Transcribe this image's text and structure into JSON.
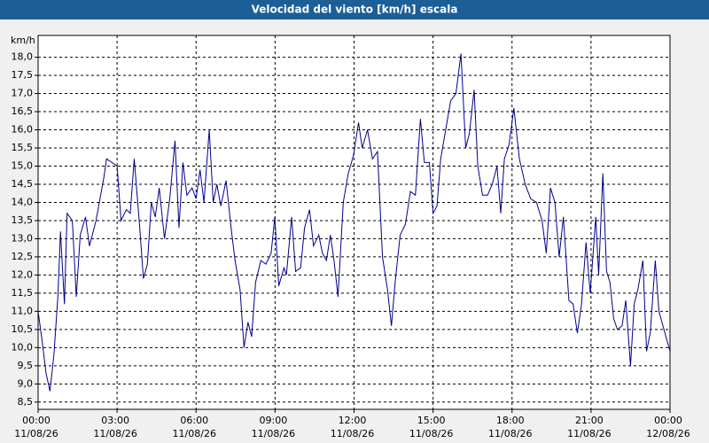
{
  "chart_data": {
    "type": "line",
    "title": "Velocidad del viento [km/h] escala",
    "y_label": "km/h",
    "color": "#00008b",
    "grid": true,
    "xlim": [
      0,
      24
    ],
    "ylim": [
      8.3,
      18.6
    ],
    "xticks": [
      {
        "value": 0,
        "label": "00:00",
        "date": "11/08/26"
      },
      {
        "value": 3,
        "label": "03:00",
        "date": "11/08/26"
      },
      {
        "value": 6,
        "label": "06:00",
        "date": "11/08/26"
      },
      {
        "value": 9,
        "label": "09:00",
        "date": "11/08/26"
      },
      {
        "value": 12,
        "label": "12:00",
        "date": "11/08/26"
      },
      {
        "value": 15,
        "label": "15:00",
        "date": "11/08/26"
      },
      {
        "value": 18,
        "label": "18:00",
        "date": "11/08/26"
      },
      {
        "value": 21,
        "label": "21:00",
        "date": "11/08/26"
      },
      {
        "value": 24,
        "label": "00:00",
        "date": "12/08/26"
      }
    ],
    "yticks": [
      {
        "value": 8.5,
        "label": "8,5"
      },
      {
        "value": 9,
        "label": "9,0"
      },
      {
        "value": 9.5,
        "label": "9,5"
      },
      {
        "value": 10,
        "label": "10,0"
      },
      {
        "value": 10.5,
        "label": "10,5"
      },
      {
        "value": 11,
        "label": "11,0"
      },
      {
        "value": 11.5,
        "label": "11,5"
      },
      {
        "value": 12,
        "label": "12,0"
      },
      {
        "value": 12.5,
        "label": "12,5"
      },
      {
        "value": 13,
        "label": "13,0"
      },
      {
        "value": 13.5,
        "label": "13,5"
      },
      {
        "value": 14,
        "label": "14,0"
      },
      {
        "value": 14.5,
        "label": "14,5"
      },
      {
        "value": 15,
        "label": "15,0"
      },
      {
        "value": 15.5,
        "label": "15,5"
      },
      {
        "value": 16,
        "label": "16,0"
      },
      {
        "value": 16.5,
        "label": "16,5"
      },
      {
        "value": 17,
        "label": "17,0"
      },
      {
        "value": 17.5,
        "label": "17,5"
      },
      {
        "value": 18,
        "label": "18,0"
      }
    ],
    "x": [
      0,
      0.15,
      0.3,
      0.45,
      0.6,
      0.75,
      0.85,
      1.0,
      1.1,
      1.3,
      1.45,
      1.6,
      1.8,
      1.95,
      2.2,
      2.5,
      2.6,
      2.8,
      3.0,
      3.15,
      3.35,
      3.5,
      3.65,
      3.85,
      4.0,
      4.15,
      4.3,
      4.45,
      4.6,
      4.8,
      5.0,
      5.2,
      5.35,
      5.5,
      5.65,
      5.85,
      6.0,
      6.15,
      6.3,
      6.5,
      6.65,
      6.79,
      6.94,
      7.14,
      7.33,
      7.48,
      7.67,
      7.82,
      7.97,
      8.11,
      8.26,
      8.46,
      8.65,
      8.85,
      8.99,
      9.14,
      9.34,
      9.43,
      9.63,
      9.78,
      9.97,
      10.12,
      10.31,
      10.46,
      10.66,
      10.8,
      10.95,
      11.1,
      11.24,
      11.39,
      11.59,
      11.78,
      11.98,
      12.17,
      12.31,
      12.51,
      12.7,
      12.89,
      13.08,
      13.27,
      13.42,
      13.56,
      13.75,
      13.95,
      14.14,
      14.33,
      14.52,
      14.67,
      14.86,
      15.0,
      15.15,
      15.29,
      15.48,
      15.67,
      15.87,
      16.06,
      16.24,
      16.38,
      16.56,
      16.7,
      16.88,
      17.07,
      17.25,
      17.43,
      17.57,
      17.71,
      17.89,
      18.07,
      18.28,
      18.5,
      18.71,
      18.93,
      19.14,
      19.3,
      19.46,
      19.63,
      19.79,
      19.95,
      20.16,
      20.32,
      20.48,
      20.64,
      20.81,
      20.97,
      21.18,
      21.29,
      21.45,
      21.59,
      21.72,
      21.86,
      22.0,
      22.18,
      22.32,
      22.5,
      22.64,
      22.78,
      22.97,
      23.11,
      23.25,
      23.44,
      23.58,
      23.77,
      24.0
    ],
    "values": [
      11.0,
      10.2,
      9.3,
      8.8,
      9.8,
      11.4,
      13.2,
      11.2,
      13.7,
      13.5,
      11.4,
      13.1,
      13.6,
      12.8,
      13.5,
      14.7,
      15.2,
      15.1,
      15.0,
      13.5,
      13.8,
      13.7,
      15.2,
      13.4,
      11.9,
      12.3,
      14.0,
      13.6,
      14.4,
      13.0,
      14.1,
      15.7,
      13.3,
      15.1,
      14.2,
      14.4,
      14.1,
      14.9,
      14.0,
      16.0,
      14.0,
      14.5,
      13.9,
      14.6,
      13.3,
      12.4,
      11.6,
      10.0,
      10.7,
      10.3,
      11.8,
      12.4,
      12.3,
      12.6,
      13.6,
      11.7,
      12.2,
      12.0,
      13.6,
      12.1,
      12.2,
      13.3,
      13.8,
      12.8,
      13.1,
      12.6,
      12.4,
      13.1,
      12.4,
      11.4,
      14.0,
      14.8,
      15.3,
      16.2,
      15.5,
      16.0,
      15.2,
      15.4,
      12.5,
      11.6,
      10.6,
      11.8,
      13.1,
      13.4,
      14.3,
      14.2,
      16.3,
      15.1,
      15.1,
      13.7,
      13.9,
      15.2,
      16.0,
      16.8,
      17.0,
      18.1,
      15.5,
      15.9,
      17.1,
      15.0,
      14.2,
      14.2,
      14.5,
      15.0,
      13.7,
      15.2,
      15.6,
      16.6,
      15.2,
      14.5,
      14.1,
      14.0,
      13.5,
      12.6,
      14.4,
      14.0,
      12.5,
      13.6,
      11.3,
      11.2,
      10.4,
      11.2,
      12.9,
      11.5,
      13.6,
      12.0,
      14.8,
      12.1,
      11.8,
      10.8,
      10.5,
      10.6,
      11.3,
      9.5,
      11.2,
      11.6,
      12.4,
      9.9,
      10.4,
      12.4,
      11.0,
      10.5,
      9.9
    ]
  }
}
